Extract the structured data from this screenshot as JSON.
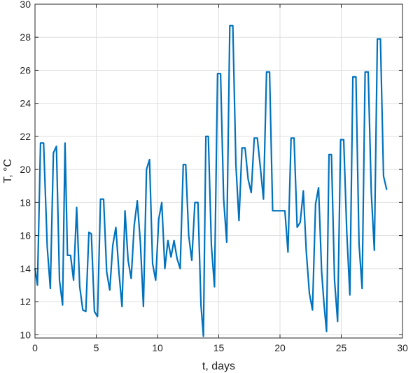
{
  "chart_data": {
    "type": "line",
    "title": "",
    "xlabel": "t, days",
    "ylabel": "T, °C",
    "xlim": [
      0,
      30
    ],
    "ylim": [
      9.8,
      30
    ],
    "xticks": [
      0,
      5,
      10,
      15,
      20,
      25,
      30
    ],
    "yticks": [
      10,
      12,
      14,
      16,
      18,
      20,
      22,
      24,
      26,
      28,
      30
    ],
    "grid": true,
    "box": true,
    "line_color": "#0072BD",
    "series": [
      {
        "x": [
          0,
          0.2,
          0.45,
          0.7,
          1.0,
          1.25,
          1.5,
          1.75,
          2.0,
          2.25,
          2.45,
          2.65,
          2.9,
          3.15,
          3.4,
          3.65,
          3.9,
          4.15,
          4.4,
          4.6,
          4.85,
          5.1,
          5.35,
          5.6,
          5.85,
          6.1,
          6.35,
          6.6,
          6.85,
          7.1,
          7.35,
          7.6,
          7.85,
          8.1,
          8.35,
          8.6,
          8.85,
          9.1,
          9.35,
          9.6,
          9.85,
          10.1,
          10.35,
          10.6,
          10.85,
          11.1,
          11.35,
          11.6,
          11.85,
          12.1,
          12.3,
          12.55,
          12.8,
          13.05,
          13.3,
          13.55,
          13.75,
          13.95,
          14.15,
          14.4,
          14.65,
          14.9,
          15.15,
          15.4,
          15.65,
          15.9,
          16.15,
          16.4,
          16.65,
          16.9,
          17.15,
          17.4,
          17.65,
          17.9,
          18.15,
          18.4,
          18.65,
          18.9,
          19.15,
          19.4,
          19.65,
          19.9,
          20.15,
          20.4,
          20.65,
          20.9,
          21.15,
          21.4,
          21.65,
          21.9,
          22.15,
          22.4,
          22.65,
          22.9,
          23.15,
          23.4,
          23.6,
          23.8,
          24.0,
          24.2,
          24.45,
          24.7,
          24.95,
          25.2,
          25.45,
          25.7,
          25.95,
          26.2,
          26.45,
          26.7,
          26.95,
          27.2,
          27.45,
          27.7,
          27.95,
          28.2,
          28.45,
          28.7
        ],
        "y": [
          14.0,
          13.0,
          21.6,
          21.6,
          15.3,
          12.8,
          21.0,
          21.4,
          13.3,
          11.8,
          21.6,
          14.8,
          14.8,
          13.3,
          17.7,
          12.9,
          11.5,
          11.4,
          16.2,
          16.1,
          11.4,
          11.1,
          18.2,
          18.2,
          13.8,
          12.7,
          15.4,
          16.5,
          13.8,
          11.7,
          17.5,
          14.5,
          13.4,
          16.6,
          18.1,
          15.6,
          11.7,
          20.0,
          20.6,
          14.3,
          13.3,
          17.0,
          18.0,
          14.0,
          15.7,
          14.7,
          15.7,
          14.6,
          14.0,
          20.3,
          20.3,
          16.0,
          14.5,
          18.0,
          18.0,
          11.8,
          9.9,
          22.0,
          22.0,
          15.4,
          12.9,
          25.8,
          25.8,
          18.2,
          15.6,
          28.7,
          28.7,
          20.3,
          16.9,
          21.3,
          21.3,
          19.4,
          18.6,
          21.9,
          21.9,
          20.1,
          18.2,
          25.9,
          25.9,
          17.5,
          17.5,
          17.5,
          17.5,
          17.5,
          15.0,
          21.9,
          21.9,
          16.5,
          16.8,
          18.7,
          15.0,
          12.5,
          11.5,
          17.9,
          18.9,
          13.8,
          11.8,
          10.2,
          20.9,
          20.9,
          13.3,
          10.8,
          21.8,
          21.8,
          16.2,
          12.4,
          25.6,
          25.6,
          15.5,
          12.8,
          25.9,
          25.9,
          18.6,
          15.1,
          27.9,
          27.9,
          19.6,
          18.8
        ]
      }
    ]
  }
}
